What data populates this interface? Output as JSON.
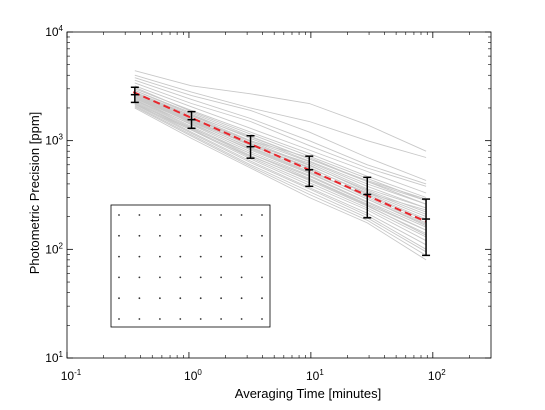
{
  "chart_data": {
    "type": "line",
    "xlabel": "Averaging Time [minutes]",
    "ylabel": "Photometric Precision [ppm]",
    "xscale": "log",
    "yscale": "log",
    "xlim": [
      0.1,
      300
    ],
    "ylim": [
      10,
      10000
    ],
    "grid": false,
    "x_ticks": [
      {
        "base": "10",
        "exp": "-1",
        "value": 0.1
      },
      {
        "base": "10",
        "exp": "0",
        "value": 1
      },
      {
        "base": "10",
        "exp": "1",
        "value": 10
      },
      {
        "base": "10",
        "exp": "2",
        "value": 100
      }
    ],
    "y_ticks": [
      {
        "base": "10",
        "exp": "1",
        "value": 10
      },
      {
        "base": "10",
        "exp": "2",
        "value": 100
      },
      {
        "base": "10",
        "exp": "3",
        "value": 1000
      },
      {
        "base": "10",
        "exp": "4",
        "value": 10000
      }
    ],
    "colors": {
      "stars": "#c8c8c8",
      "fit": "#e8262c",
      "errorbars": "#000000"
    },
    "fit_line": {
      "x": [
        0.35,
        88
      ],
      "y": [
        2800,
        180
      ]
    },
    "errorbars": [
      {
        "x": 0.36,
        "y": 2650,
        "ylow": 2250,
        "yhigh": 3100
      },
      {
        "x": 1.05,
        "y": 1560,
        "ylow": 1300,
        "yhigh": 1850
      },
      {
        "x": 3.2,
        "y": 880,
        "ylow": 690,
        "yhigh": 1110
      },
      {
        "x": 9.7,
        "y": 540,
        "ylow": 380,
        "yhigh": 720
      },
      {
        "x": 29,
        "y": 320,
        "ylow": 195,
        "yhigh": 460
      },
      {
        "x": 88,
        "y": 190,
        "ylow": 88,
        "yhigh": 290
      }
    ],
    "star_curves_x": [
      0.36,
      1.05,
      3.2,
      9.7,
      29,
      88
    ],
    "star_curves": [
      [
        4400,
        3200,
        2700,
        2200,
        1400,
        800
      ],
      [
        4000,
        2800,
        2000,
        1500,
        1000,
        700
      ],
      [
        3800,
        2600,
        1900,
        1200,
        700,
        430
      ],
      [
        3600,
        2400,
        1600,
        1000,
        600,
        400
      ],
      [
        3400,
        2200,
        1500,
        900,
        560,
        380
      ],
      [
        3200,
        2050,
        1300,
        820,
        520,
        330
      ],
      [
        3000,
        1900,
        1200,
        760,
        470,
        300
      ],
      [
        2900,
        1800,
        1100,
        680,
        420,
        260
      ],
      [
        2800,
        1700,
        1000,
        640,
        380,
        240
      ],
      [
        2700,
        1620,
        950,
        590,
        350,
        220
      ],
      [
        2600,
        1550,
        900,
        560,
        330,
        200
      ],
      [
        2550,
        1500,
        860,
        520,
        310,
        185
      ],
      [
        2500,
        1450,
        820,
        500,
        290,
        170
      ],
      [
        2450,
        1400,
        790,
        480,
        275,
        160
      ],
      [
        2400,
        1350,
        760,
        450,
        260,
        150
      ],
      [
        2350,
        1320,
        730,
        430,
        250,
        140
      ],
      [
        2300,
        1280,
        700,
        410,
        240,
        130
      ],
      [
        2250,
        1250,
        680,
        390,
        230,
        120
      ],
      [
        2200,
        1200,
        650,
        370,
        215,
        110
      ],
      [
        2150,
        1170,
        630,
        360,
        205,
        100
      ],
      [
        2100,
        1130,
        600,
        340,
        195,
        95
      ],
      [
        2050,
        1100,
        580,
        320,
        185,
        88
      ],
      [
        2000,
        1050,
        560,
        300,
        175,
        80
      ],
      [
        2600,
        1600,
        1000,
        700,
        420,
        280
      ],
      [
        2500,
        1500,
        930,
        620,
        360,
        240
      ],
      [
        2750,
        1650,
        980,
        600,
        340,
        210
      ],
      [
        2650,
        1580,
        920,
        570,
        320,
        190
      ],
      [
        2450,
        1480,
        870,
        540,
        300,
        175
      ],
      [
        2350,
        1420,
        840,
        510,
        290,
        165
      ],
      [
        2900,
        1750,
        1050,
        650,
        400,
        260
      ],
      [
        3100,
        1850,
        1150,
        720,
        450,
        280
      ],
      [
        2200,
        1300,
        760,
        470,
        270,
        150
      ],
      [
        2150,
        1250,
        720,
        440,
        255,
        135
      ],
      [
        2550,
        1530,
        900,
        560,
        330,
        230
      ],
      [
        2700,
        1700,
        1080,
        680,
        430,
        290
      ]
    ],
    "inset": {
      "rows": 6,
      "cols": 8,
      "dot_color": "#333333"
    }
  }
}
